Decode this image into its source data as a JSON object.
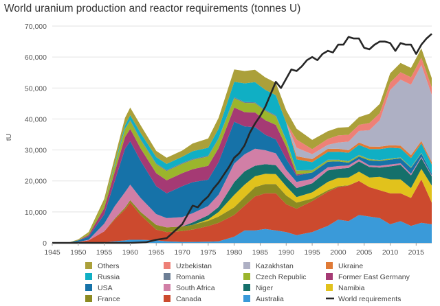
{
  "chart_data": {
    "type": "area",
    "title": "World uranium production and reactor requirements (tonnes U)",
    "xlabel": "",
    "ylabel": "tU",
    "xlim": [
      1945,
      2018
    ],
    "ylim": [
      0,
      70000
    ],
    "x_ticks": [
      "1945",
      "1950",
      "1955",
      "1960",
      "1965",
      "1970",
      "1975",
      "1980",
      "1985",
      "1990",
      "1995",
      "2000",
      "2005",
      "2010",
      "2015"
    ],
    "y_ticks": [
      "0",
      "10,000",
      "20,000",
      "30,000",
      "40,000",
      "50,000",
      "60,000",
      "70,000"
    ],
    "grid": "horizontal",
    "legend_position": "bottom",
    "stacked": true,
    "x": [
      1945,
      1948,
      1950,
      1952,
      1955,
      1957,
      1959,
      1960,
      1962,
      1965,
      1967,
      1970,
      1972,
      1975,
      1977,
      1980,
      1982,
      1984,
      1986,
      1988,
      1990,
      1992,
      1995,
      1998,
      2000,
      2002,
      2004,
      2006,
      2008,
      2010,
      2012,
      2014,
      2016,
      2018
    ],
    "series": [
      {
        "name": "Australia",
        "color": "#3a9ad9",
        "values": [
          0,
          0,
          0,
          0,
          200,
          500,
          800,
          1000,
          1000,
          800,
          500,
          300,
          300,
          400,
          500,
          2000,
          4000,
          4000,
          4500,
          4000,
          3500,
          2500,
          3500,
          5500,
          7500,
          7000,
          9000,
          8500,
          8000,
          6000,
          7000,
          5500,
          6500,
          6000
        ]
      },
      {
        "name": "Canada",
        "color": "#cc4a2e",
        "values": [
          0,
          0,
          300,
          800,
          3500,
          7000,
          10000,
          12000,
          8000,
          3500,
          3000,
          3500,
          4000,
          5000,
          6000,
          7000,
          8000,
          11000,
          11500,
          12000,
          9000,
          8500,
          10000,
          11000,
          10500,
          11500,
          11000,
          9500,
          9000,
          10000,
          9000,
          9000,
          14000,
          7000
        ]
      },
      {
        "name": "France",
        "color": "#8c8a22",
        "values": [
          0,
          0,
          0,
          0,
          0,
          300,
          600,
          800,
          1000,
          1500,
          1500,
          1500,
          1500,
          1700,
          2000,
          2500,
          2800,
          3000,
          3000,
          3000,
          2800,
          2000,
          800,
          500,
          300,
          100,
          0,
          0,
          0,
          0,
          0,
          0,
          0,
          0
        ]
      },
      {
        "name": "Namibia",
        "color": "#e1c21c",
        "values": [
          0,
          0,
          0,
          0,
          0,
          0,
          0,
          0,
          0,
          0,
          0,
          0,
          0,
          500,
          1500,
          4000,
          4000,
          3500,
          3300,
          3200,
          3000,
          1800,
          2000,
          2700,
          2700,
          2500,
          3000,
          3100,
          4300,
          4500,
          4500,
          3200,
          3400,
          5500
        ]
      },
      {
        "name": "Niger",
        "color": "#15706b",
        "values": [
          0,
          0,
          0,
          0,
          0,
          0,
          0,
          0,
          0,
          0,
          0,
          0,
          800,
          1300,
          1600,
          4100,
          4300,
          3400,
          3100,
          2900,
          2800,
          2900,
          2900,
          3700,
          2900,
          3100,
          3300,
          3400,
          3000,
          4200,
          4700,
          4100,
          3500,
          3000
        ]
      },
      {
        "name": "South Africa",
        "color": "#d17fa6",
        "values": [
          0,
          0,
          0,
          200,
          2500,
          4000,
          5000,
          5000,
          4500,
          3500,
          3000,
          3000,
          3000,
          3000,
          4000,
          6000,
          5500,
          5500,
          4500,
          3800,
          2500,
          2000,
          1500,
          1000,
          900,
          800,
          700,
          500,
          600,
          600,
          500,
          500,
          400,
          300
        ]
      },
      {
        "name": "USA",
        "color": "#1672a8",
        "values": [
          0,
          50,
          500,
          1000,
          3000,
          8000,
          14000,
          14000,
          12000,
          9000,
          8000,
          10000,
          10000,
          8500,
          10500,
          13500,
          9000,
          7000,
          5000,
          4500,
          3500,
          2000,
          2000,
          1800,
          1500,
          900,
          900,
          1600,
          1500,
          1600,
          1600,
          1900,
          1100,
          600
        ]
      },
      {
        "name": "Former East Germany",
        "color": "#a53a74",
        "values": [
          0,
          0,
          0,
          500,
          2000,
          3000,
          3800,
          4000,
          4000,
          4200,
          4200,
          4200,
          4200,
          4500,
          4500,
          4600,
          4600,
          4700,
          4700,
          4700,
          4000,
          400,
          0,
          0,
          0,
          0,
          0,
          0,
          0,
          0,
          0,
          0,
          0,
          0
        ]
      },
      {
        "name": "Czech Republic",
        "color": "#9bb52c",
        "values": [
          0,
          0,
          0,
          500,
          1500,
          2000,
          2500,
          2600,
          2700,
          2900,
          3000,
          3000,
          3000,
          3000,
          3000,
          3000,
          3000,
          3000,
          3000,
          2800,
          2000,
          1200,
          700,
          500,
          500,
          400,
          400,
          400,
          300,
          250,
          230,
          200,
          150,
          0
        ]
      },
      {
        "name": "Romania",
        "color": "#6d7e95",
        "values": [
          0,
          0,
          0,
          0,
          0,
          100,
          200,
          300,
          300,
          300,
          300,
          300,
          300,
          300,
          300,
          300,
          300,
          300,
          300,
          300,
          200,
          150,
          150,
          150,
          100,
          100,
          100,
          100,
          80,
          80,
          80,
          80,
          50,
          0
        ]
      },
      {
        "name": "Russia",
        "color": "#10afc4",
        "values": [
          0,
          0,
          0,
          0,
          0,
          500,
          1000,
          1500,
          2000,
          2000,
          2000,
          2000,
          2500,
          2500,
          3000,
          5000,
          6000,
          6500,
          6500,
          6500,
          5500,
          3500,
          2500,
          2500,
          2500,
          2700,
          3200,
          3200,
          3500,
          3500,
          2900,
          2900,
          3000,
          2900
        ]
      },
      {
        "name": "Ukraine",
        "color": "#e07a36",
        "values": [
          0,
          0,
          0,
          0,
          0,
          0,
          0,
          0,
          0,
          0,
          0,
          0,
          0,
          0,
          0,
          0,
          0,
          0,
          0,
          0,
          0,
          1000,
          1000,
          1000,
          1000,
          800,
          800,
          800,
          800,
          800,
          900,
          900,
          800,
          800
        ]
      },
      {
        "name": "Kazakhstan",
        "color": "#aeb0c4",
        "values": [
          0,
          0,
          0,
          0,
          0,
          0,
          0,
          0,
          0,
          0,
          0,
          0,
          0,
          0,
          0,
          0,
          0,
          0,
          0,
          0,
          0,
          2800,
          1600,
          1300,
          2000,
          2800,
          3700,
          5300,
          8500,
          17800,
          21300,
          22800,
          24500,
          21700
        ]
      },
      {
        "name": "Uzbekistan",
        "color": "#ee8077",
        "values": [
          0,
          0,
          0,
          0,
          0,
          0,
          0,
          0,
          0,
          0,
          0,
          0,
          0,
          0,
          0,
          0,
          0,
          0,
          0,
          0,
          0,
          2600,
          1600,
          1900,
          2300,
          2200,
          2000,
          2300,
          2300,
          2400,
          2400,
          2400,
          2400,
          2400
        ]
      },
      {
        "name": "Others",
        "color": "#aba03a",
        "values": [
          0,
          0,
          300,
          500,
          1500,
          2000,
          2500,
          2500,
          2500,
          2000,
          2000,
          2000,
          2500,
          3000,
          3500,
          4000,
          4000,
          4000,
          4000,
          4000,
          4000,
          3500,
          3000,
          2500,
          2500,
          2500,
          2500,
          3000,
          3000,
          3000,
          3000,
          3000,
          3000,
          3000
        ]
      }
    ],
    "requirements": {
      "name": "World requirements",
      "color": "#262626",
      "x": [
        1945,
        1955,
        1960,
        1963,
        1965,
        1967,
        1968,
        1970,
        1971,
        1972,
        1973,
        1974,
        1975,
        1976,
        1977,
        1978,
        1979,
        1980,
        1981,
        1982,
        1983,
        1984,
        1985,
        1986,
        1987,
        1988,
        1989,
        1990,
        1991,
        1992,
        1993,
        1994,
        1995,
        1996,
        1997,
        1998,
        1999,
        2000,
        2001,
        2002,
        2003,
        2004,
        2005,
        2006,
        2007,
        2008,
        2009,
        2010,
        2011,
        2012,
        2013,
        2014,
        2015,
        2016,
        2017,
        2018
      ],
      "values": [
        0,
        0,
        0,
        200,
        1000,
        1500,
        3000,
        6000,
        9000,
        12000,
        11500,
        13500,
        15000,
        17500,
        19500,
        22000,
        24500,
        27500,
        29000,
        31500,
        35500,
        38500,
        41000,
        44000,
        48000,
        52000,
        50000,
        53000,
        56000,
        55500,
        57000,
        59000,
        60000,
        59000,
        61000,
        62000,
        61500,
        64000,
        64000,
        66500,
        66000,
        66000,
        63000,
        62500,
        64000,
        65000,
        65000,
        64500,
        62000,
        64500,
        64000,
        64000,
        61000,
        64000,
        66000,
        67500
      ]
    }
  },
  "legend": [
    {
      "label": "Others",
      "color": "#aba03a",
      "kind": "swatch"
    },
    {
      "label": "Uzbekistan",
      "color": "#ee8077",
      "kind": "swatch"
    },
    {
      "label": "Kazakhstan",
      "color": "#aeb0c4",
      "kind": "swatch"
    },
    {
      "label": "Ukraine",
      "color": "#e07a36",
      "kind": "swatch"
    },
    {
      "label": "Russia",
      "color": "#10afc4",
      "kind": "swatch"
    },
    {
      "label": "Romania",
      "color": "#6d7e95",
      "kind": "swatch"
    },
    {
      "label": "Czech Republic",
      "color": "#9bb52c",
      "kind": "swatch"
    },
    {
      "label": "Former East Germany",
      "color": "#a53a74",
      "kind": "swatch"
    },
    {
      "label": "USA",
      "color": "#1672a8",
      "kind": "swatch"
    },
    {
      "label": "South Africa",
      "color": "#d17fa6",
      "kind": "swatch"
    },
    {
      "label": "Niger",
      "color": "#15706b",
      "kind": "swatch"
    },
    {
      "label": "Namibia",
      "color": "#e1c21c",
      "kind": "swatch"
    },
    {
      "label": "France",
      "color": "#8c8a22",
      "kind": "swatch"
    },
    {
      "label": "Canada",
      "color": "#cc4a2e",
      "kind": "swatch"
    },
    {
      "label": "Australia",
      "color": "#3a9ad9",
      "kind": "swatch"
    },
    {
      "label": "World requirements",
      "color": "#262626",
      "kind": "line"
    }
  ]
}
